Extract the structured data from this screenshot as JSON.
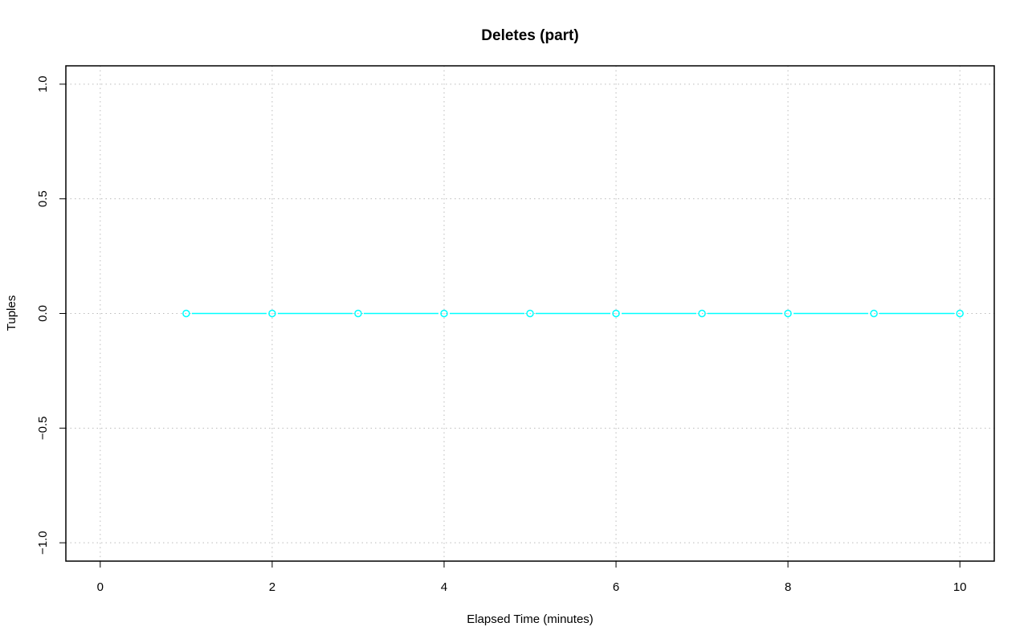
{
  "chart_data": {
    "type": "line",
    "title": "Deletes (part)",
    "xlabel": "Elapsed Time (minutes)",
    "ylabel": "Tuples",
    "xlim": [
      -0.4,
      10.4
    ],
    "ylim": [
      -1.08,
      1.08
    ],
    "xticks": [
      0,
      2,
      4,
      6,
      8,
      10
    ],
    "xtick_labels": [
      "0",
      "2",
      "4",
      "6",
      "8",
      "10"
    ],
    "yticks": [
      -1.0,
      -0.5,
      0.0,
      0.5,
      1.0
    ],
    "ytick_labels": [
      "−1.0",
      "−0.5",
      "0.0",
      "0.5",
      "1.0"
    ],
    "grid": true,
    "series": [
      {
        "color": "#00ffff",
        "marker": "open-circle",
        "x": [
          1,
          2,
          3,
          4,
          5,
          6,
          7,
          8,
          9,
          10
        ],
        "y": [
          0,
          0,
          0,
          0,
          0,
          0,
          0,
          0,
          0,
          0
        ]
      }
    ]
  }
}
